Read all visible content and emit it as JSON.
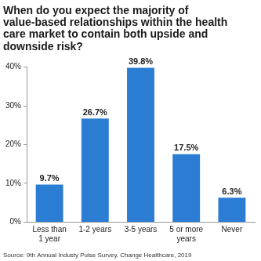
{
  "chart_data": {
    "type": "bar",
    "title": "When do you expect the majority of value-based relationships within the health care market to contain both upside and downside risk?",
    "source": "Source: 9th Annual Industy Pulse Survey, Change Healthcare, 2019",
    "categories": [
      "Less than 1 year",
      "1-2 years",
      "3-5 years",
      "5 or more years",
      "Never"
    ],
    "values": [
      9.7,
      26.7,
      39.8,
      17.5,
      6.3
    ],
    "value_labels": [
      "9.7%",
      "26.7%",
      "39.8%",
      "17.5%",
      "6.3%"
    ],
    "data_labels": true,
    "color": "#2b7cd3",
    "ylim": [
      0,
      40
    ],
    "yticks": [
      {
        "value": 0,
        "label": "0%"
      },
      {
        "value": 10,
        "label": "10%"
      },
      {
        "value": 20,
        "label": "20%"
      },
      {
        "value": 30,
        "label": "30%"
      },
      {
        "value": 40,
        "label": "40%"
      }
    ],
    "grid": false
  }
}
